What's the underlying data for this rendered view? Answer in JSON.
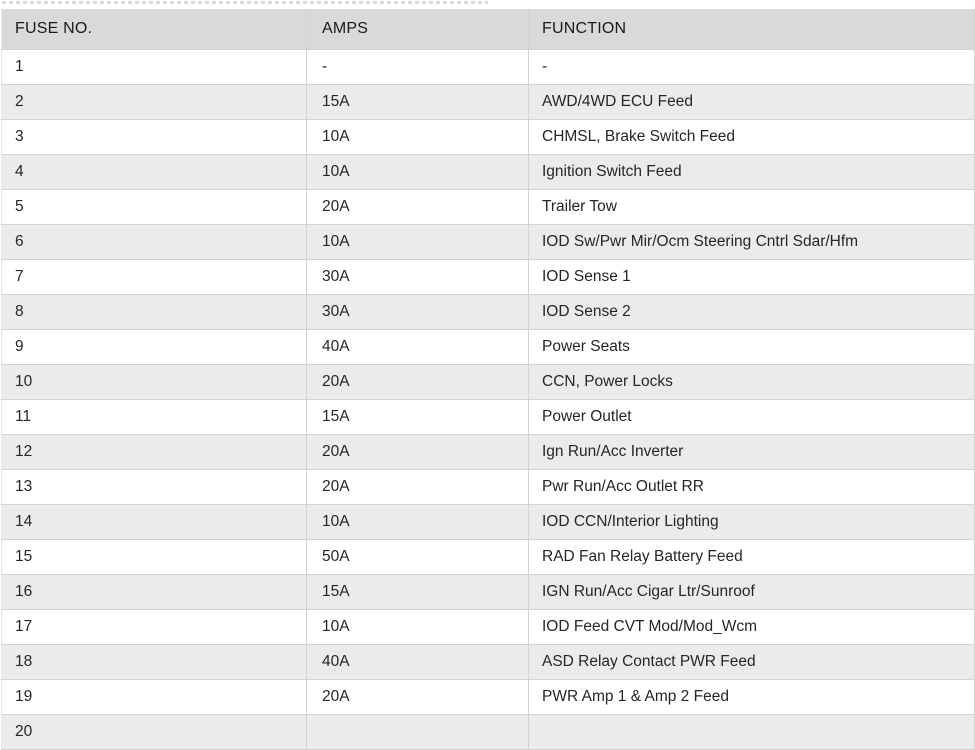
{
  "page": {
    "description": "Vehicle fuse box specification table",
    "colors": {
      "header_bg": "#d9d9d9",
      "stripe_bg": "#ebebed",
      "border": "#d3d3d3",
      "text": "#262626",
      "header_text": "#191919"
    }
  },
  "table": {
    "columns": [
      {
        "label": "FUSE NO."
      },
      {
        "label": "AMPS"
      },
      {
        "label": "FUNCTION"
      }
    ],
    "rows": [
      {
        "fuse": "1",
        "amps": "-",
        "function": "-"
      },
      {
        "fuse": "2",
        "amps": "15A",
        "function": "AWD/4WD ECU Feed"
      },
      {
        "fuse": "3",
        "amps": "10A",
        "function": "CHMSL, Brake Switch Feed"
      },
      {
        "fuse": "4",
        "amps": "10A",
        "function": "Ignition Switch Feed"
      },
      {
        "fuse": "5",
        "amps": "20A",
        "function": "Trailer Tow"
      },
      {
        "fuse": "6",
        "amps": "10A",
        "function": "IOD Sw/Pwr Mir/Ocm Steering Cntrl Sdar/Hfm"
      },
      {
        "fuse": "7",
        "amps": "30A",
        "function": "IOD Sense 1"
      },
      {
        "fuse": "8",
        "amps": "30A",
        "function": "IOD Sense 2"
      },
      {
        "fuse": "9",
        "amps": "40A",
        "function": "Power Seats"
      },
      {
        "fuse": "10",
        "amps": "20A",
        "function": "CCN, Power Locks"
      },
      {
        "fuse": "11",
        "amps": "15A",
        "function": "Power Outlet"
      },
      {
        "fuse": "12",
        "amps": "20A",
        "function": "Ign Run/Acc Inverter"
      },
      {
        "fuse": "13",
        "amps": "20A",
        "function": "Pwr Run/Acc Outlet RR"
      },
      {
        "fuse": "14",
        "amps": "10A",
        "function": "IOD CCN/Interior Lighting"
      },
      {
        "fuse": "15",
        "amps": "50A",
        "function": "RAD Fan Relay Battery Feed"
      },
      {
        "fuse": "16",
        "amps": "15A",
        "function": "IGN Run/Acc Cigar Ltr/Sunroof"
      },
      {
        "fuse": "17",
        "amps": "10A",
        "function": "IOD Feed CVT Mod/Mod_Wcm"
      },
      {
        "fuse": "18",
        "amps": "40A",
        "function": "ASD Relay Contact PWR Feed"
      },
      {
        "fuse": "19",
        "amps": "20A",
        "function": "PWR Amp 1 & Amp 2 Feed"
      },
      {
        "fuse": "20",
        "amps": "",
        "function": ""
      }
    ]
  }
}
